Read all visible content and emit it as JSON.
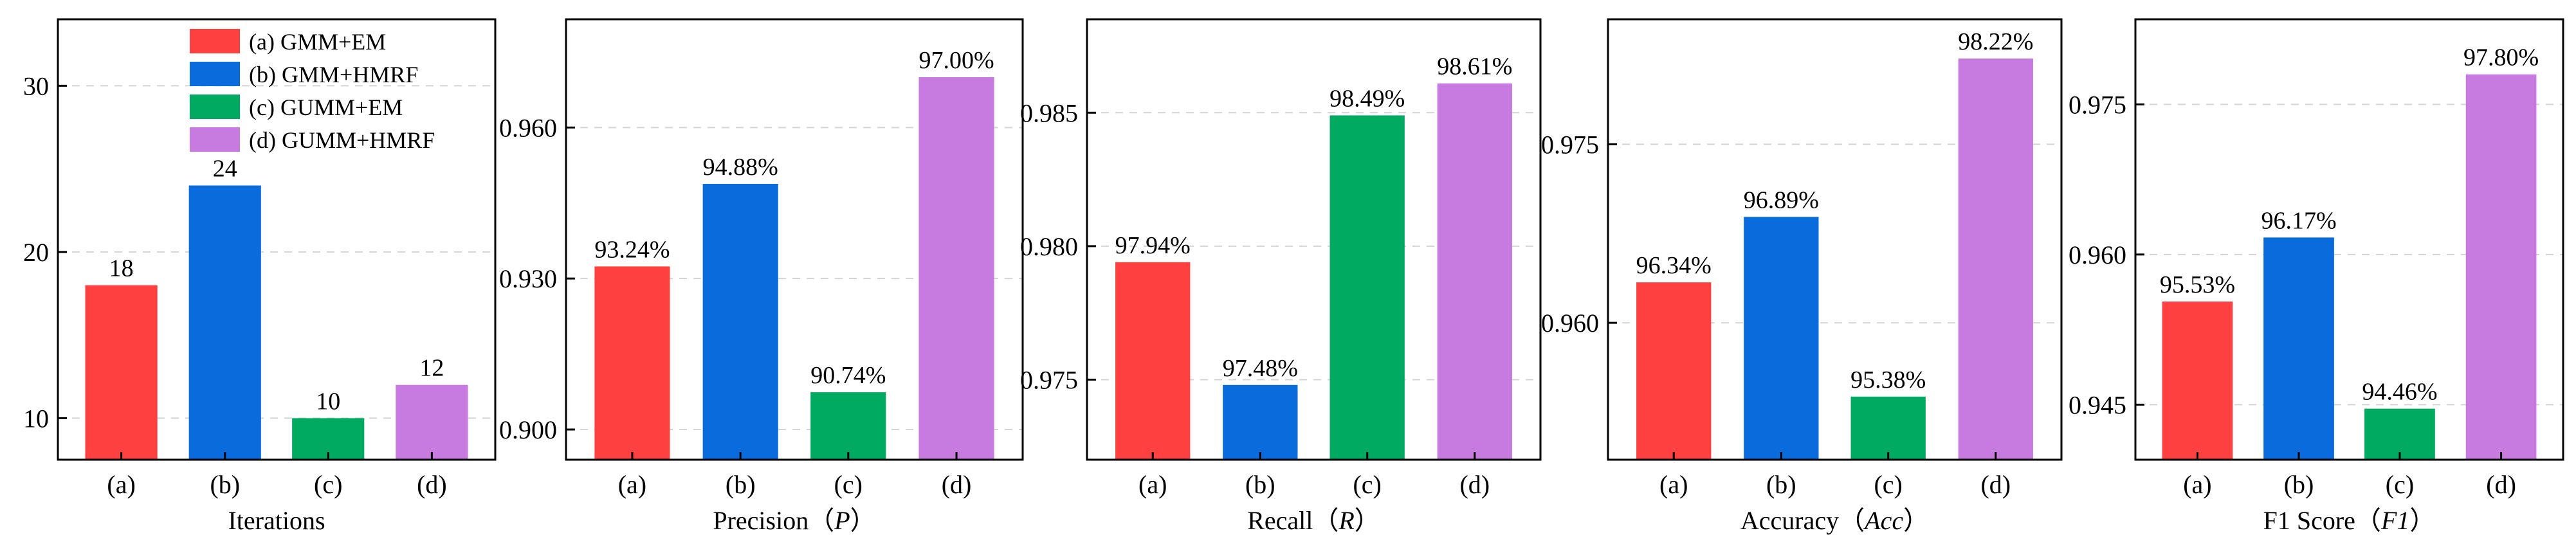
{
  "series_colors": [
    "#ff4040",
    "#0a6bdc",
    "#00aa60",
    "#c77ae0"
  ],
  "legend": {
    "items": [
      "(a) GMM+EM",
      "(b) GMM+HMRF",
      "(c) GUMM+EM",
      "(d) GUMM+HMRF"
    ]
  },
  "chart_data": [
    {
      "type": "bar",
      "categories": [
        "(a)",
        "(b)",
        "(c)",
        "(d)"
      ],
      "values": [
        18,
        24,
        10,
        12
      ],
      "value_labels": [
        "18",
        "24",
        "10",
        "12"
      ],
      "xlabel": "Iterations",
      "ylabel": "",
      "ylim": [
        7.5,
        34
      ],
      "yticks": [
        10,
        20,
        30
      ],
      "ytick_labels": [
        "10",
        "20",
        "30"
      ],
      "grid": true,
      "legend_position": "top-right"
    },
    {
      "type": "bar",
      "categories": [
        "(a)",
        "(b)",
        "(c)",
        "(d)"
      ],
      "values": [
        0.9324,
        0.9488,
        0.9074,
        0.97
      ],
      "value_labels": [
        "93.24%",
        "94.88%",
        "90.74%",
        "97.00%"
      ],
      "xlabel": "Precision（P）",
      "ylabel": "",
      "ylim": [
        0.894,
        0.9815
      ],
      "yticks": [
        0.9,
        0.93,
        0.96
      ],
      "ytick_labels": [
        "0.900",
        "0.930",
        "0.960"
      ],
      "grid": true
    },
    {
      "type": "bar",
      "categories": [
        "(a)",
        "(b)",
        "(c)",
        "(d)"
      ],
      "values": [
        0.9794,
        0.9748,
        0.9849,
        0.9861
      ],
      "value_labels": [
        "97.94%",
        "97.48%",
        "98.49%",
        "98.61%"
      ],
      "xlabel": "Recall（R）",
      "ylabel": "",
      "ylim": [
        0.972,
        0.9885
      ],
      "yticks": [
        0.975,
        0.98,
        0.985
      ],
      "ytick_labels": [
        "0.975",
        "0.980",
        "0.985"
      ],
      "grid": true
    },
    {
      "type": "bar",
      "categories": [
        "(a)",
        "(b)",
        "(c)",
        "(d)"
      ],
      "values": [
        0.9634,
        0.9689,
        0.9538,
        0.9822
      ],
      "value_labels": [
        "96.34%",
        "96.89%",
        "95.38%",
        "98.22%"
      ],
      "xlabel": "Accuracy（Acc）",
      "ylabel": "",
      "ylim": [
        0.9485,
        0.9855
      ],
      "yticks": [
        0.96,
        0.975
      ],
      "ytick_labels": [
        "0.960",
        "0.975"
      ],
      "grid": true
    },
    {
      "type": "bar",
      "categories": [
        "(a)",
        "(b)",
        "(c)",
        "(d)"
      ],
      "values": [
        0.9553,
        0.9617,
        0.9446,
        0.978
      ],
      "value_labels": [
        "95.53%",
        "96.17%",
        "94.46%",
        "97.80%"
      ],
      "xlabel": "F1 Score（F1）",
      "ylabel": "",
      "ylim": [
        0.9395,
        0.9835
      ],
      "yticks": [
        0.945,
        0.96,
        0.975
      ],
      "ytick_labels": [
        "0.945",
        "0.960",
        "0.975"
      ],
      "grid": true
    }
  ]
}
